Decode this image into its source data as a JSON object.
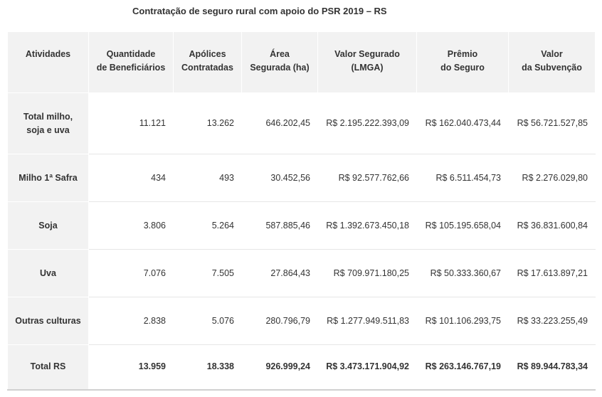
{
  "title": "Contratação de seguro rural com apoio do PSR 2019 – RS",
  "table": {
    "headers": [
      [
        "Atividades"
      ],
      [
        "Quantidade",
        "de Beneficiários"
      ],
      [
        "Apólices",
        "Contratadas"
      ],
      [
        "Área",
        "Segurada (ha)"
      ],
      [
        "Valor Segurado",
        "(LMGA)"
      ],
      [
        "Prêmio",
        "do Seguro"
      ],
      [
        "Valor",
        "da Subvenção"
      ]
    ],
    "rows": [
      {
        "label": [
          "Total milho,",
          "soja e uva"
        ],
        "cells": [
          "11.121",
          "13.262",
          "646.202,45",
          "R$ 2.195.222.393,09",
          "R$ 162.040.473,44",
          "R$ 56.721.527,85"
        ]
      },
      {
        "label": [
          "Milho 1ª Safra"
        ],
        "cells": [
          "434",
          "493",
          "30.452,56",
          "R$ 92.577.762,66",
          "R$ 6.511.454,73",
          "R$ 2.276.029,80"
        ]
      },
      {
        "label": [
          "Soja"
        ],
        "cells": [
          "3.806",
          "5.264",
          "587.885,46",
          "R$ 1.392.673.450,18",
          "R$ 105.195.658,04",
          "R$ 36.831.600,84"
        ]
      },
      {
        "label": [
          "Uva"
        ],
        "cells": [
          "7.076",
          "7.505",
          "27.864,43",
          "R$ 709.971.180,25",
          "R$ 50.333.360,67",
          "R$ 17.613.897,21"
        ]
      },
      {
        "label": [
          "Outras culturas"
        ],
        "cells": [
          "2.838",
          "5.076",
          "280.796,79",
          "R$ 1.277.949.511,83",
          "R$ 101.106.293,75",
          "R$ 33.223.255,49"
        ]
      },
      {
        "label": [
          "Total RS"
        ],
        "cells": [
          "13.959",
          "18.338",
          "926.999,24",
          "R$ 3.473.171.904,92",
          "R$ 263.146.767,19",
          "R$ 89.944.783,34"
        ]
      }
    ]
  }
}
